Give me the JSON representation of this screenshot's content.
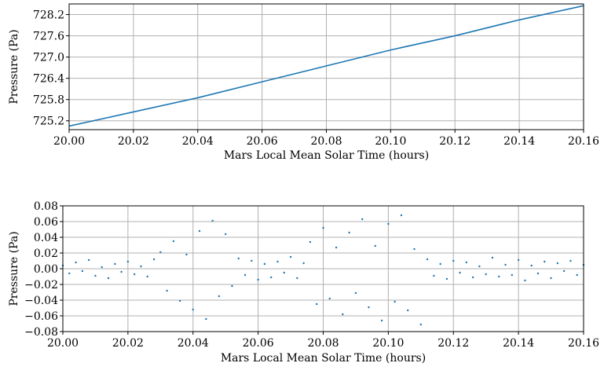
{
  "chart_data": [
    {
      "type": "line",
      "xlabel": "Mars Local Mean Solar Time (hours)",
      "ylabel": "Pressure (Pa)",
      "grid": true,
      "xlim": [
        20.0,
        20.16
      ],
      "ylim": [
        724.95,
        728.5
      ],
      "xticks": [
        {
          "value": 20.0,
          "label": "20.00"
        },
        {
          "value": 20.02,
          "label": "20.02"
        },
        {
          "value": 20.04,
          "label": "20.04"
        },
        {
          "value": 20.06,
          "label": "20.06"
        },
        {
          "value": 20.08,
          "label": "20.08"
        },
        {
          "value": 20.1,
          "label": "20.10"
        },
        {
          "value": 20.12,
          "label": "20.12"
        },
        {
          "value": 20.14,
          "label": "20.14"
        },
        {
          "value": 20.16,
          "label": "20.16"
        }
      ],
      "yticks": [
        725.2,
        725.8,
        726.4,
        {
          "value": 727.0,
          "label": "727.0"
        },
        727.6,
        728.2
      ],
      "series": [
        {
          "color": "#1f77b4",
          "x": [
            20.0,
            20.02,
            20.04,
            20.06,
            20.08,
            20.1,
            20.12,
            20.14,
            20.16
          ],
          "values": [
            725.05,
            725.45,
            725.85,
            726.3,
            726.75,
            727.2,
            727.6,
            728.05,
            728.45
          ]
        }
      ]
    },
    {
      "type": "scatter",
      "xlabel": "Mars Local Mean Solar Time (hours)",
      "ylabel": "Pressure (Pa)",
      "grid": true,
      "xlim": [
        20.0,
        20.16
      ],
      "ylim": [
        -0.08,
        0.08
      ],
      "xticks": [
        {
          "value": 20.0,
          "label": "20.00"
        },
        {
          "value": 20.02,
          "label": "20.02"
        },
        {
          "value": 20.04,
          "label": "20.04"
        },
        {
          "value": 20.06,
          "label": "20.06"
        },
        {
          "value": 20.08,
          "label": "20.08"
        },
        {
          "value": 20.1,
          "label": "20.10"
        },
        {
          "value": 20.12,
          "label": "20.12"
        },
        {
          "value": 20.14,
          "label": "20.14"
        },
        {
          "value": 20.16,
          "label": "20.16"
        }
      ],
      "yticks": [
        0.08,
        0.06,
        0.04,
        0.02,
        {
          "value": 0,
          "label": "0.00"
        },
        {
          "value": -0.02,
          "label": "−0.02"
        },
        {
          "value": -0.04,
          "label": "−0.04"
        },
        {
          "value": -0.06,
          "label": "−0.06"
        },
        {
          "value": -0.08,
          "label": "−0.08"
        }
      ],
      "series": [
        {
          "color": "#1f77b4",
          "x": [
            20.0,
            20.002,
            20.004,
            20.006,
            20.008,
            20.01,
            20.012,
            20.014,
            20.016,
            20.018,
            20.02,
            20.022,
            20.024,
            20.026,
            20.028,
            20.03,
            20.032,
            20.034,
            20.036,
            20.038,
            20.04,
            20.042,
            20.044,
            20.046,
            20.048,
            20.05,
            20.052,
            20.054,
            20.056,
            20.058,
            20.06,
            20.062,
            20.064,
            20.066,
            20.068,
            20.07,
            20.072,
            20.074,
            20.076,
            20.078,
            20.08,
            20.082,
            20.084,
            20.086,
            20.088,
            20.09,
            20.092,
            20.094,
            20.096,
            20.098,
            20.1,
            20.102,
            20.104,
            20.106,
            20.108,
            20.11,
            20.112,
            20.114,
            20.116,
            20.118,
            20.12,
            20.122,
            20.124,
            20.126,
            20.128,
            20.13,
            20.132,
            20.134,
            20.136,
            20.138,
            20.14,
            20.142,
            20.144,
            20.146,
            20.148,
            20.15,
            20.152,
            20.154,
            20.156,
            20.158,
            20.16
          ],
          "values": [
            0.004,
            -0.006,
            0.008,
            -0.003,
            0.011,
            -0.009,
            0.002,
            -0.012,
            0.006,
            -0.004,
            0.009,
            -0.007,
            0.003,
            -0.01,
            0.012,
            0.021,
            -0.028,
            0.035,
            -0.041,
            0.018,
            -0.052,
            0.048,
            -0.064,
            0.061,
            -0.035,
            0.044,
            -0.022,
            0.013,
            -0.008,
            0.01,
            -0.014,
            0.006,
            -0.011,
            0.009,
            -0.005,
            0.015,
            -0.012,
            0.007,
            0.034,
            -0.045,
            0.052,
            -0.038,
            0.027,
            -0.058,
            0.046,
            -0.031,
            0.063,
            -0.049,
            0.029,
            -0.066,
            0.057,
            -0.042,
            0.068,
            -0.053,
            0.025,
            -0.071,
            0.012,
            -0.009,
            0.006,
            -0.013,
            0.01,
            -0.005,
            0.008,
            -0.011,
            0.003,
            -0.007,
            0.014,
            -0.01,
            0.005,
            -0.008,
            0.011,
            -0.015,
            0.004,
            -0.006,
            0.009,
            -0.012,
            0.007,
            -0.003,
            0.01,
            -0.008,
            0.005
          ]
        }
      ]
    }
  ]
}
